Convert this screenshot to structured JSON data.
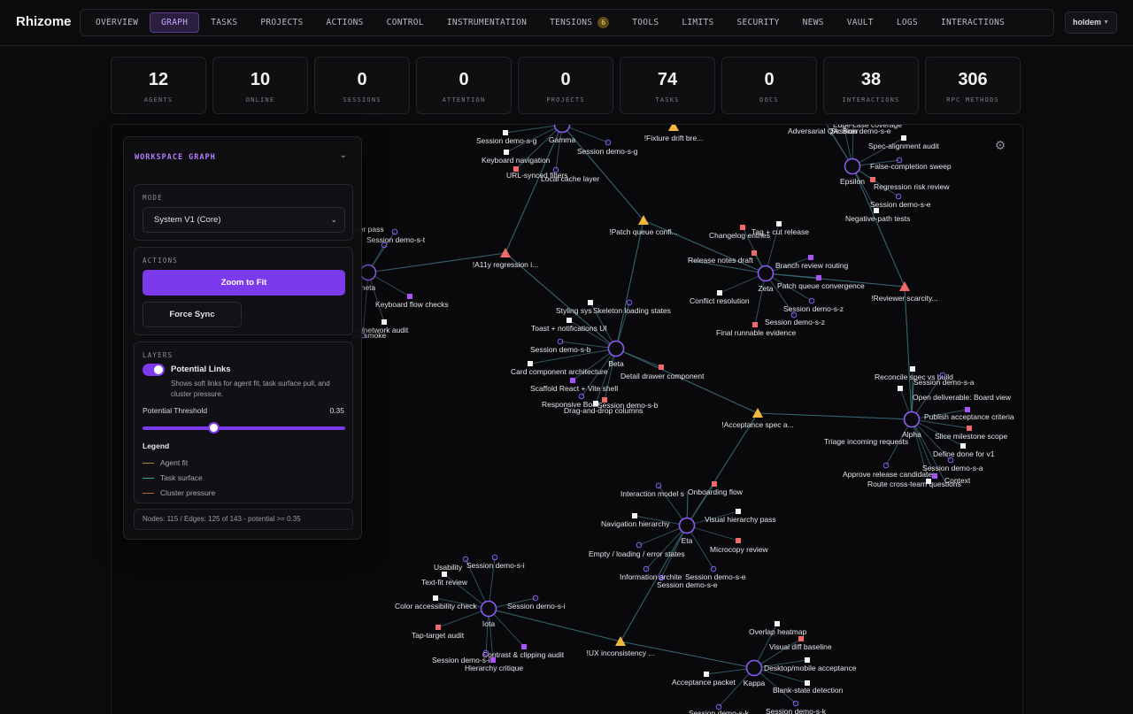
{
  "app": {
    "title": "Rhizome"
  },
  "nav": {
    "items": [
      {
        "label": "OVERVIEW",
        "active": false
      },
      {
        "label": "GRAPH",
        "active": true
      },
      {
        "label": "TASKS",
        "active": false
      },
      {
        "label": "PROJECTS",
        "active": false
      },
      {
        "label": "ACTIONS",
        "active": false
      },
      {
        "label": "CONTROL",
        "active": false
      },
      {
        "label": "INSTRUMENTATION",
        "active": false
      },
      {
        "label": "TENSIONS",
        "active": false,
        "badge": "6"
      },
      {
        "label": "TOOLS",
        "active": false
      },
      {
        "label": "LIMITS",
        "active": false
      },
      {
        "label": "SECURITY",
        "active": false
      },
      {
        "label": "NEWS",
        "active": false
      },
      {
        "label": "VAULT",
        "active": false
      },
      {
        "label": "LOGS",
        "active": false
      },
      {
        "label": "INTERACTIONS",
        "active": false
      }
    ],
    "user": "holdem"
  },
  "stats": [
    {
      "value": "12",
      "label": "AGENTS"
    },
    {
      "value": "10",
      "label": "ONLINE"
    },
    {
      "value": "0",
      "label": "SESSIONS"
    },
    {
      "value": "0",
      "label": "ATTENTION"
    },
    {
      "value": "0",
      "label": "PROJECTS"
    },
    {
      "value": "74",
      "label": "TASKS"
    },
    {
      "value": "0",
      "label": "DOCS"
    },
    {
      "value": "38",
      "label": "INTERACTIONS"
    },
    {
      "value": "306",
      "label": "RPC METHODS"
    }
  ],
  "panel": {
    "title": "WORKSPACE GRAPH",
    "mode": {
      "label": "MODE",
      "value": "System V1 (Core)"
    },
    "actions": {
      "label": "ACTIONS",
      "zoom": "Zoom to Fit",
      "sync": "Force Sync"
    },
    "layers": {
      "label": "LAYERS",
      "toggle_label": "Potential Links",
      "toggle_on": true,
      "toggle_desc": "Shows soft links for agent fit, task surface pull, and cluster pressure.",
      "threshold_label": "Potential Threshold",
      "threshold_value": "0.35",
      "threshold_fraction": 0.35,
      "legend_title": "Legend",
      "legend": [
        {
          "label": "Agent fit",
          "color": "#a08a3c"
        },
        {
          "label": "Task surface",
          "color": "#3aa6a0"
        },
        {
          "label": "Cluster pressure",
          "color": "#b5643c"
        }
      ]
    },
    "footer": "Nodes: 115 / Edges: 125 of 143 - potential >= 0.35"
  },
  "colors": {
    "accent": "#7c3aed",
    "agent": "#8b5cf6",
    "task_done": "#f2f2f2",
    "task_red": "#f06a6a",
    "task_purple": "#a855f7",
    "tension": "#f0b840",
    "tension_red": "#f06a6a",
    "edge": "#3a6e78"
  },
  "graph": {
    "agents": [
      "Gamma",
      "Epsilon",
      "Zeta",
      "heta",
      "Beta",
      "Alpha",
      "Eta",
      "Iota",
      "Kappa"
    ],
    "tensions": [
      "!Fixture drift bre...",
      "!Patch queue confl...",
      "!A11y regression i...",
      "!Reviewer scarcity...",
      "!Acceptance spec a...",
      "!UX inconsistency ..."
    ],
    "labels": [
      "Session demo-s-g",
      "Keyboard navigation",
      "URL-synced filters",
      "Local cache layer",
      "Session demo-s-g",
      "Adversarial QA: Boar",
      "Session demo-s-e",
      "Edge-case coverage",
      "Spec-alignment audit",
      "False-completion sweep",
      "Regression risk review",
      "Session demo-s-e",
      "Negative-path tests",
      "Changelog entries",
      "Tag + cut release",
      "Release notes draft",
      "Branch review routing",
      "Patch queue convergence",
      "Conflict resolution",
      "Session demo-s-z",
      "Session demo-s-z",
      "Final runnable evidence",
      "der pass",
      "Session demo-s-t",
      "Keyboard flow checks",
      "ole/network audit",
      "ser smoke",
      "Styling sys",
      "Skeleton loading states",
      "Toast + notifications UI",
      "Session demo-s-b",
      "Card component architecture",
      "Detail drawer component",
      "Scaffold React + Vite shell",
      "Responsive Boar",
      "Session demo-s-b",
      "Drag-and-drop columns",
      "Reconcile spec vs build",
      "Session demo-s-a",
      "Open deliverable: Board view",
      "Publish acceptance criteria",
      "Slice milestone scope",
      "Triage incoming requests",
      "Define done for v1",
      "Session demo-s-a",
      "Approve release candidate",
      "Route cross-team questions",
      "Context",
      "Interaction model s",
      "Onboarding flow",
      "Visual hierarchy pass",
      "Navigation hierarchy",
      "Microcopy review",
      "Empty / loading / error states",
      "Information archite",
      "Session demo-s-e",
      "Session demo-s-e",
      "Usability",
      "Session demo-s-i",
      "Text-fit review",
      "Color accessibility check",
      "Session demo-s-i",
      "Tap-target audit",
      "Contrast & clipping audit",
      "Session demo-s-i",
      "Hierarchy critique",
      "Overlap heatmap",
      "Visual diff baseline",
      "Desktop/mobile acceptance",
      "Acceptance packet",
      "Blank-state detection",
      "Session demo-s-k",
      "Session demo-s-k"
    ]
  }
}
